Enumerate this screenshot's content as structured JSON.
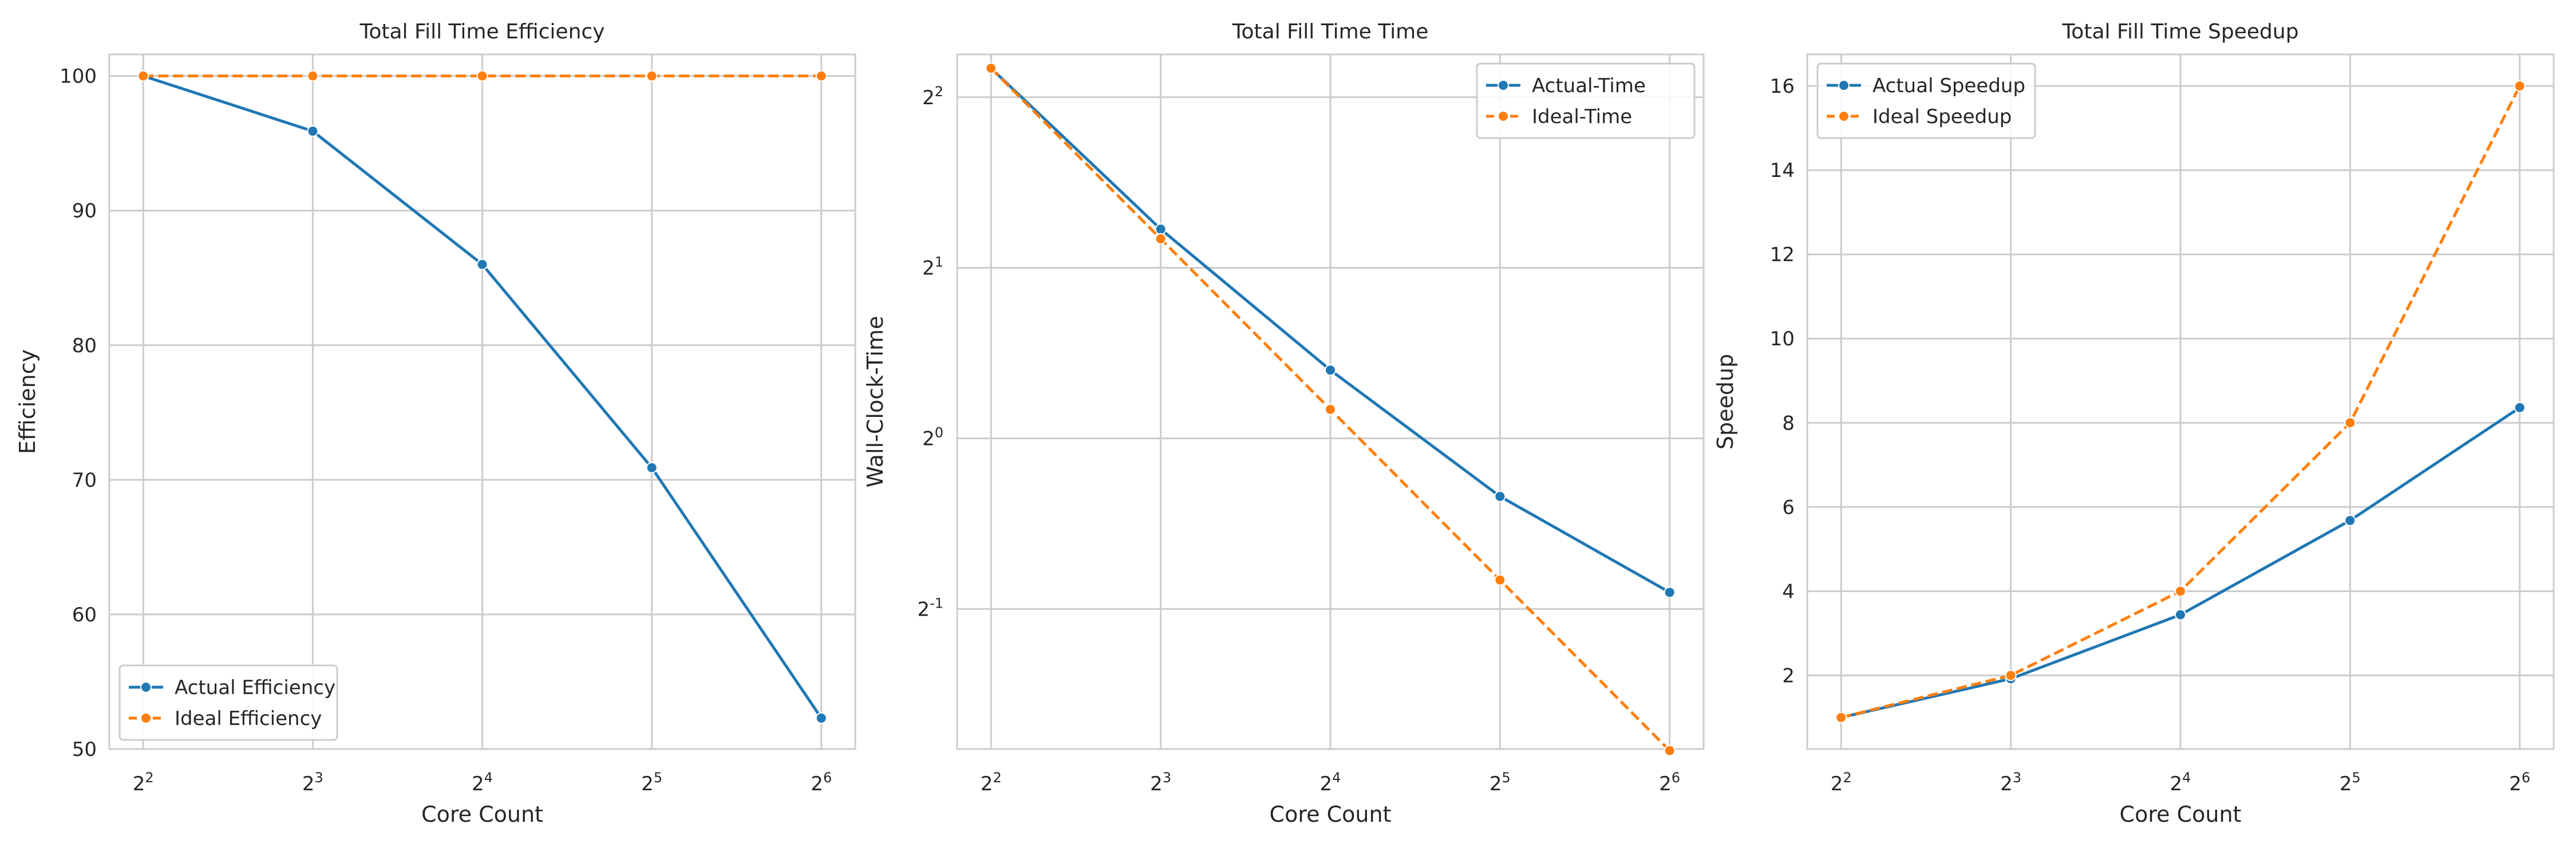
{
  "chart_data": [
    {
      "type": "line",
      "title": "Total Fill Time Efficiency",
      "xlabel": "Core Count",
      "ylabel": "Efficiency",
      "x": [
        4,
        8,
        16,
        32,
        64
      ],
      "x_scale": "log2",
      "x_tick_labels": [
        "2^2",
        "2^3",
        "2^4",
        "2^5",
        "2^6"
      ],
      "y_scale": "linear",
      "ylim": [
        50,
        101.6
      ],
      "y_ticks": [
        50,
        60,
        70,
        80,
        90,
        100
      ],
      "y_tick_labels": [
        "50",
        "60",
        "70",
        "80",
        "90",
        "100"
      ],
      "grid": true,
      "legend_position": "lower-left",
      "series": [
        {
          "name": "Actual Efficiency",
          "values": [
            100,
            95.9,
            86.0,
            70.9,
            52.3
          ],
          "color": "#1f77b4",
          "style": "solid"
        },
        {
          "name": "Ideal Efficiency",
          "values": [
            100,
            100,
            100,
            100,
            100
          ],
          "color": "#ff7f0e",
          "style": "dashed"
        }
      ]
    },
    {
      "type": "line",
      "title": "Total Fill Time Time",
      "xlabel": "Core Count",
      "ylabel": "Wall-Clock-Time",
      "x": [
        4,
        8,
        16,
        32,
        64
      ],
      "x_scale": "log2",
      "x_tick_labels": [
        "2^2",
        "2^3",
        "2^4",
        "2^5",
        "2^6"
      ],
      "y_scale": "log2",
      "ylim": [
        0.283,
        4.76
      ],
      "y_ticks": [
        0.5,
        1,
        2,
        4
      ],
      "y_tick_labels": [
        "2^-1",
        "2^0",
        "2^1",
        "2^2"
      ],
      "grid": true,
      "legend_position": "upper-right",
      "series": [
        {
          "name": "Actual-Time",
          "values": [
            4.5,
            2.34,
            1.32,
            0.79,
            0.535
          ],
          "color": "#1f77b4",
          "style": "solid"
        },
        {
          "name": "Ideal-Time",
          "values": [
            4.5,
            2.25,
            1.125,
            0.5625,
            0.28125
          ],
          "color": "#ff7f0e",
          "style": "dashed"
        }
      ]
    },
    {
      "type": "line",
      "title": "Total Fill Time Speedup",
      "xlabel": "Core Count",
      "ylabel": "Speedup",
      "x": [
        4,
        8,
        16,
        32,
        64
      ],
      "x_scale": "log2",
      "x_tick_labels": [
        "2^2",
        "2^3",
        "2^4",
        "2^5",
        "2^6"
      ],
      "y_scale": "linear",
      "ylim": [
        0.25,
        16.75
      ],
      "y_ticks": [
        2,
        4,
        6,
        8,
        10,
        12,
        14,
        16
      ],
      "y_tick_labels": [
        "2",
        "4",
        "6",
        "8",
        "10",
        "12",
        "14",
        "16"
      ],
      "grid": true,
      "legend_position": "upper-left",
      "series": [
        {
          "name": "Actual Speedup",
          "values": [
            1.0,
            1.92,
            3.44,
            5.68,
            8.36
          ],
          "color": "#1f77b4",
          "style": "solid"
        },
        {
          "name": "Ideal Speedup",
          "values": [
            1,
            2,
            4,
            8,
            16
          ],
          "color": "#ff7f0e",
          "style": "dashed"
        }
      ]
    }
  ]
}
